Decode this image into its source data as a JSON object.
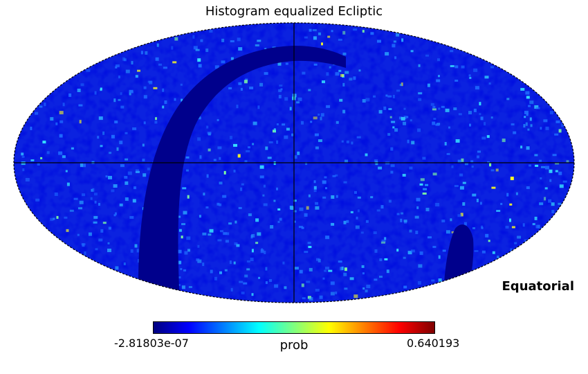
{
  "chart_data": {
    "type": "heatmap",
    "title": "Histogram equalized Ecliptic",
    "projection": "mollweide",
    "coordinate_label": "Equatorial",
    "colorbar": {
      "unit": "prob",
      "min_label": "-2.81803e-07",
      "max_label": "0.640193",
      "min": -2.81803e-07,
      "max": 0.640193,
      "colormap": "jet",
      "colors": [
        "#00007f",
        "#0000ff",
        "#007fff",
        "#00ffff",
        "#7fff7f",
        "#ffff00",
        "#ff7f00",
        "#ff0000",
        "#7f0000"
      ]
    },
    "graticule": true,
    "background_color": "#0b22e0",
    "masked_band_color": "#00008c"
  }
}
